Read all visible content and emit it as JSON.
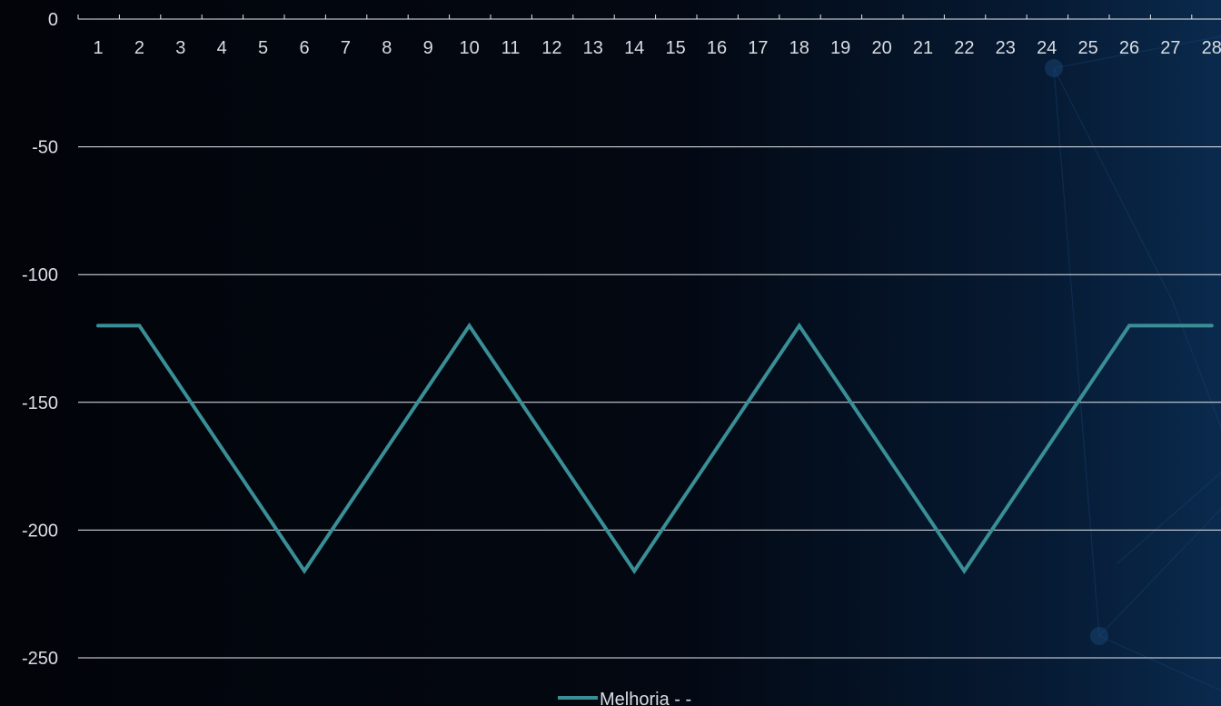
{
  "chart_data": {
    "type": "line",
    "title": "",
    "xlabel": "",
    "ylabel": "",
    "categories": [
      "1",
      "2",
      "3",
      "4",
      "5",
      "6",
      "7",
      "8",
      "9",
      "10",
      "11",
      "12",
      "13",
      "14",
      "15",
      "16",
      "17",
      "18",
      "19",
      "20",
      "21",
      "22",
      "23",
      "24",
      "25",
      "26",
      "27",
      "28"
    ],
    "yticks": [
      0,
      -50,
      -100,
      -150,
      -200,
      -250
    ],
    "ylim": [
      -270,
      0
    ],
    "grid": true,
    "legend_position": "bottom",
    "series": [
      {
        "name": "Melhoria - -",
        "color": "#3a8f96",
        "values": [
          -120,
          -120,
          -144,
          -168,
          -192,
          -216,
          -192,
          -168,
          -144,
          -120,
          -144,
          -168,
          -192,
          -216,
          -192,
          -168,
          -144,
          -120,
          -144,
          -168,
          -192,
          -216,
          -192,
          -168,
          -144,
          -120,
          -120,
          -120
        ]
      }
    ]
  }
}
